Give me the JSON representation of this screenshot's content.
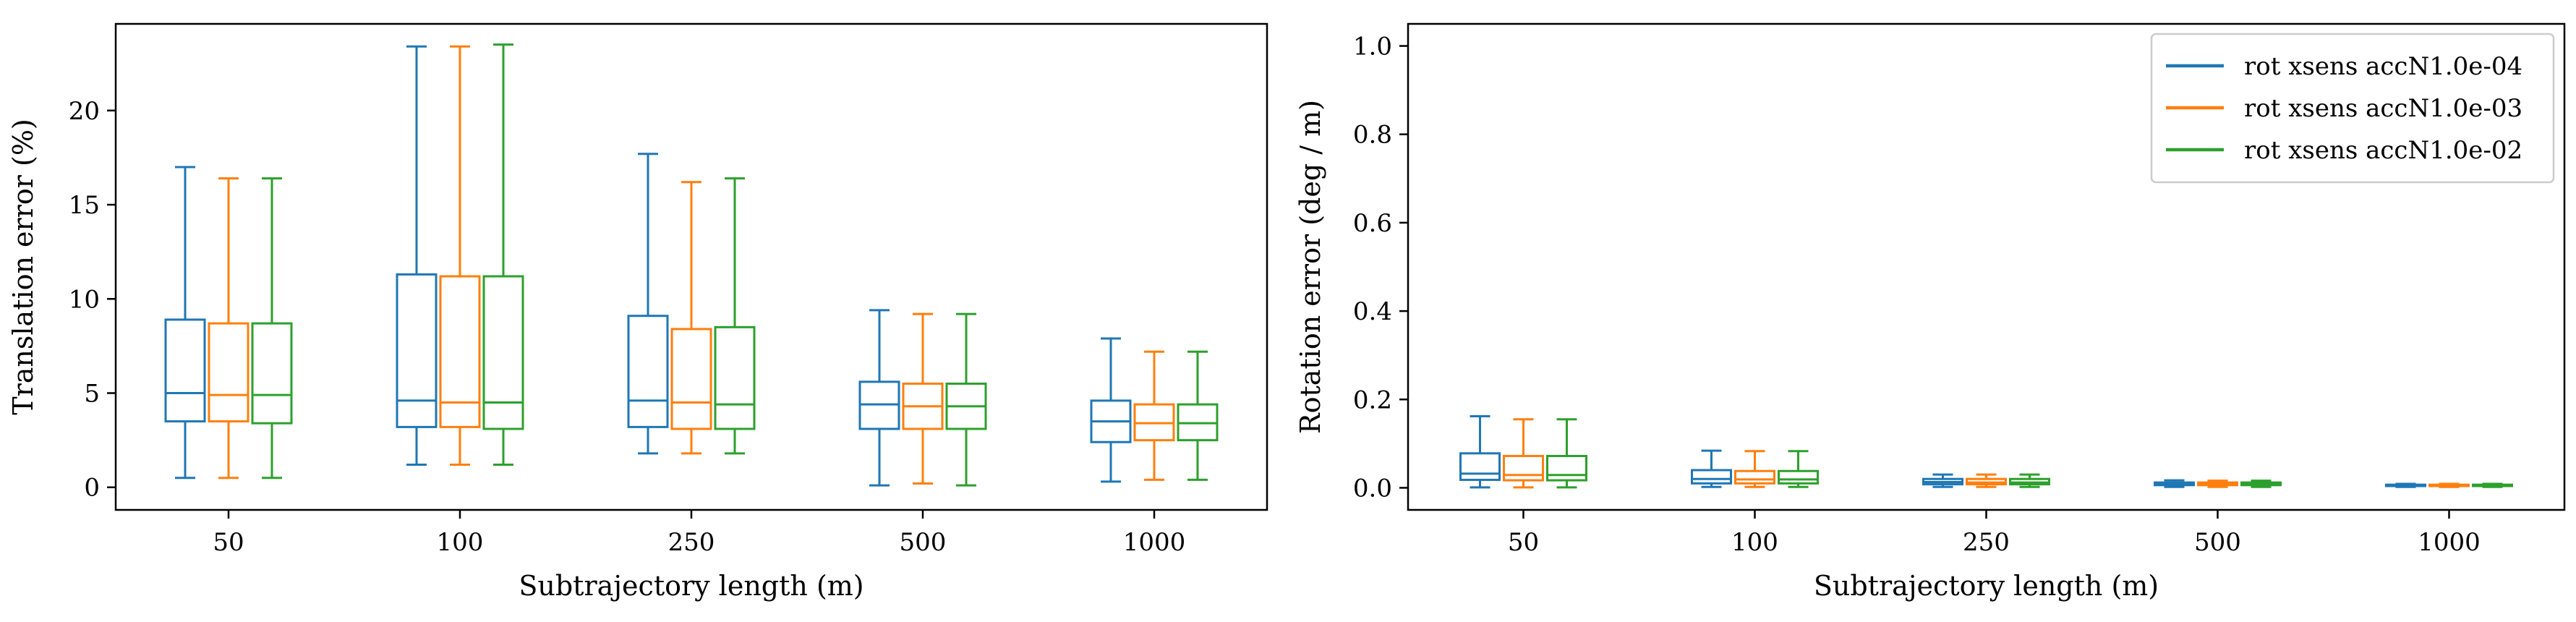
{
  "chart_data": [
    {
      "type": "box",
      "title": "",
      "xlabel": "Subtrajectory length (m)",
      "ylabel": "Translation error (%)",
      "categories": [
        "50",
        "100",
        "250",
        "500",
        "1000"
      ],
      "ylim": [
        -1.2,
        24.6
      ],
      "yticks": [
        0,
        5,
        10,
        15,
        20
      ],
      "grid": false,
      "series": [
        {
          "name": "rot xsens accN1.0e-04",
          "color": "#1f77b4",
          "boxes": [
            {
              "whislo": 0.5,
              "q1": 3.5,
              "med": 5.0,
              "q3": 8.9,
              "whishi": 17.0
            },
            {
              "whislo": 1.2,
              "q1": 3.2,
              "med": 4.6,
              "q3": 11.3,
              "whishi": 23.4
            },
            {
              "whislo": 1.8,
              "q1": 3.2,
              "med": 4.6,
              "q3": 9.1,
              "whishi": 17.7
            },
            {
              "whislo": 0.1,
              "q1": 3.1,
              "med": 4.4,
              "q3": 5.6,
              "whishi": 9.4
            },
            {
              "whislo": 0.3,
              "q1": 2.4,
              "med": 3.5,
              "q3": 4.6,
              "whishi": 7.9
            }
          ]
        },
        {
          "name": "rot xsens accN1.0e-03",
          "color": "#ff7f0e",
          "boxes": [
            {
              "whislo": 0.5,
              "q1": 3.5,
              "med": 4.9,
              "q3": 8.7,
              "whishi": 16.4
            },
            {
              "whislo": 1.2,
              "q1": 3.2,
              "med": 4.5,
              "q3": 11.2,
              "whishi": 23.4
            },
            {
              "whislo": 1.8,
              "q1": 3.1,
              "med": 4.5,
              "q3": 8.4,
              "whishi": 16.2
            },
            {
              "whislo": 0.2,
              "q1": 3.1,
              "med": 4.3,
              "q3": 5.5,
              "whishi": 9.2
            },
            {
              "whislo": 0.4,
              "q1": 2.5,
              "med": 3.4,
              "q3": 4.4,
              "whishi": 7.2
            }
          ]
        },
        {
          "name": "rot xsens accN1.0e-02",
          "color": "#2ca02c",
          "boxes": [
            {
              "whislo": 0.5,
              "q1": 3.4,
              "med": 4.9,
              "q3": 8.7,
              "whishi": 16.4
            },
            {
              "whislo": 1.2,
              "q1": 3.1,
              "med": 4.5,
              "q3": 11.2,
              "whishi": 23.5
            },
            {
              "whislo": 1.8,
              "q1": 3.1,
              "med": 4.4,
              "q3": 8.5,
              "whishi": 16.4
            },
            {
              "whislo": 0.1,
              "q1": 3.1,
              "med": 4.3,
              "q3": 5.5,
              "whishi": 9.2
            },
            {
              "whislo": 0.4,
              "q1": 2.5,
              "med": 3.4,
              "q3": 4.4,
              "whishi": 7.2
            }
          ]
        }
      ]
    },
    {
      "type": "box",
      "title": "",
      "xlabel": "Subtrajectory length (m)",
      "ylabel": "Rotation error (deg / m)",
      "categories": [
        "50",
        "100",
        "250",
        "500",
        "1000"
      ],
      "ylim": [
        -0.05,
        1.05
      ],
      "yticks": [
        0.0,
        0.2,
        0.4,
        0.6,
        0.8,
        1.0
      ],
      "grid": false,
      "legend": "top-right",
      "series": [
        {
          "name": "rot xsens accN1.0e-04",
          "color": "#1f77b4",
          "boxes": [
            {
              "whislo": 0.001,
              "q1": 0.018,
              "med": 0.032,
              "q3": 0.078,
              "whishi": 0.162
            },
            {
              "whislo": 0.002,
              "q1": 0.01,
              "med": 0.02,
              "q3": 0.04,
              "whishi": 0.084
            },
            {
              "whislo": 0.002,
              "q1": 0.008,
              "med": 0.013,
              "q3": 0.02,
              "whishi": 0.03
            },
            {
              "whislo": 0.002,
              "q1": 0.006,
              "med": 0.009,
              "q3": 0.012,
              "whishi": 0.017
            },
            {
              "whislo": 0.002,
              "q1": 0.004,
              "med": 0.005,
              "q3": 0.007,
              "whishi": 0.009
            }
          ]
        },
        {
          "name": "rot xsens accN1.0e-03",
          "color": "#ff7f0e",
          "boxes": [
            {
              "whislo": 0.001,
              "q1": 0.017,
              "med": 0.029,
              "q3": 0.072,
              "whishi": 0.155
            },
            {
              "whislo": 0.002,
              "q1": 0.01,
              "med": 0.019,
              "q3": 0.038,
              "whishi": 0.083
            },
            {
              "whislo": 0.002,
              "q1": 0.008,
              "med": 0.012,
              "q3": 0.02,
              "whishi": 0.03
            },
            {
              "whislo": 0.002,
              "q1": 0.006,
              "med": 0.009,
              "q3": 0.012,
              "whishi": 0.016
            },
            {
              "whislo": 0.002,
              "q1": 0.004,
              "med": 0.005,
              "q3": 0.007,
              "whishi": 0.009
            }
          ]
        },
        {
          "name": "rot xsens accN1.0e-02",
          "color": "#2ca02c",
          "boxes": [
            {
              "whislo": 0.001,
              "q1": 0.017,
              "med": 0.029,
              "q3": 0.072,
              "whishi": 0.155
            },
            {
              "whislo": 0.002,
              "q1": 0.01,
              "med": 0.019,
              "q3": 0.038,
              "whishi": 0.083
            },
            {
              "whislo": 0.002,
              "q1": 0.008,
              "med": 0.012,
              "q3": 0.02,
              "whishi": 0.03
            },
            {
              "whislo": 0.002,
              "q1": 0.006,
              "med": 0.009,
              "q3": 0.012,
              "whishi": 0.016
            },
            {
              "whislo": 0.002,
              "q1": 0.004,
              "med": 0.005,
              "q3": 0.007,
              "whishi": 0.009
            }
          ]
        }
      ]
    }
  ]
}
